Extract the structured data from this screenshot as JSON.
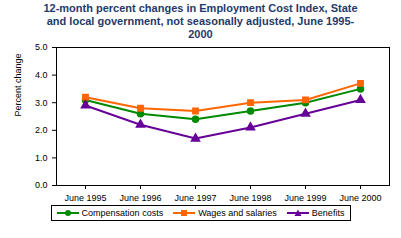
{
  "chart_data": {
    "type": "line",
    "title": "12-month percent changes in Employment Cost Index, State and local government, not seasonally adjusted, June 1995-2000",
    "y_label": "Percent change",
    "categories": [
      "June 1995",
      "June 1996",
      "June 1997",
      "June 1998",
      "June 1999",
      "June 2000"
    ],
    "series": [
      {
        "name": "Compensation costs",
        "color": "#008a00",
        "marker": "circle",
        "values": [
          3.1,
          2.6,
          2.4,
          2.7,
          3.0,
          3.5
        ]
      },
      {
        "name": "Wages and salaries",
        "color": "#ff6600",
        "marker": "square",
        "values": [
          3.2,
          2.8,
          2.7,
          3.0,
          3.1,
          3.7
        ]
      },
      {
        "name": "Benefits",
        "color": "#660099",
        "marker": "triangle",
        "values": [
          2.9,
          2.2,
          1.7,
          2.1,
          2.6,
          3.1
        ]
      }
    ],
    "ylim": [
      0,
      5
    ],
    "yticks": [
      {
        "value": 0,
        "label": "0.0"
      },
      {
        "value": 1,
        "label": "1.0"
      },
      {
        "value": 2,
        "label": "2.0"
      },
      {
        "value": 3,
        "label": "3.0"
      },
      {
        "value": 4,
        "label": "4.0"
      },
      {
        "value": 5,
        "label": "5.0"
      }
    ],
    "grid": false,
    "legend": "bottom"
  }
}
